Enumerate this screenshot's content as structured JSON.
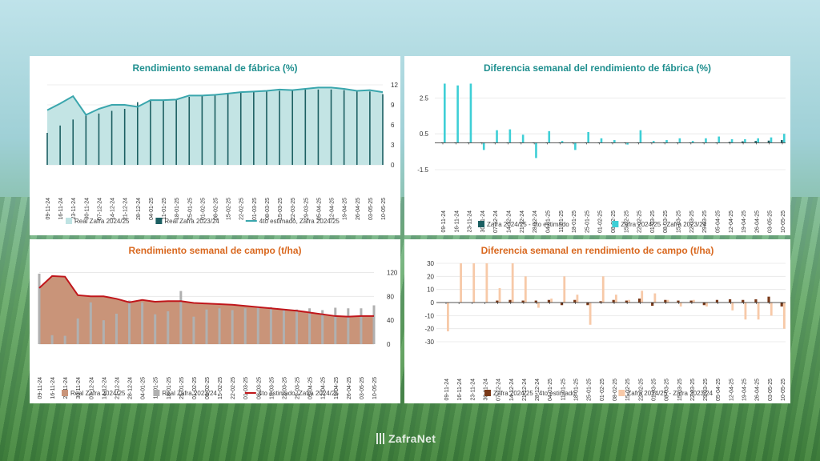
{
  "charts": [
    {
      "title": "Rendimiento semanal de fábrica (%)",
      "title_color": "#1f8f8f",
      "y_ticks": [
        "12",
        "9",
        "6",
        "3",
        "0"
      ],
      "legend": [
        {
          "label": "Real Zafra 2024/25",
          "kind": "fill",
          "color": "#bfe3e3"
        },
        {
          "label": "Real Zafra 2023/24",
          "kind": "bar",
          "color": "#1c5f62"
        },
        {
          "label": "4to estimado, Zafra 2024/25",
          "kind": "line",
          "color": "#3aa6ad"
        }
      ]
    },
    {
      "title": "Diferencia semanal del rendimiento de fábrica (%)",
      "title_color": "#1f8f8f",
      "y_ticks": [
        "2.5",
        "0.5",
        "-1.5"
      ],
      "legend": [
        {
          "label": "Zafra 2024/25 - 4to estimado",
          "kind": "bar",
          "color": "#1c5f62"
        },
        {
          "label": "Zafra 2024/25 - Zafra 2023/24",
          "kind": "bar",
          "color": "#3ecfd6"
        }
      ]
    },
    {
      "title": "Rendimiento semanal de campo (t/ha)",
      "title_color": "#d9681f",
      "y_ticks": [
        "120",
        "80",
        "40",
        "0"
      ],
      "legend": [
        {
          "label": "Real Zafra 2024/25",
          "kind": "fill",
          "color": "#c99479"
        },
        {
          "label": "Real Zafra 2023/24",
          "kind": "bar",
          "color": "#b0b0b0"
        },
        {
          "label": "4to estimado, Zafra 2024/25",
          "kind": "line",
          "color": "#c0161b"
        }
      ]
    },
    {
      "title": "Diferencia semanal en rendimiento de campo (t/ha)",
      "title_color": "#d9681f",
      "y_ticks": [
        "30",
        "20",
        "10",
        "0",
        "-10",
        "-20",
        "-30"
      ],
      "legend": [
        {
          "label": "Zafra 2024/25 - 4to estimado",
          "kind": "bar",
          "color": "#7a3a1a"
        },
        {
          "label": "Zafra 2024/25 - Zafra 2023/24",
          "kind": "bar",
          "color": "#f7c9a8"
        }
      ]
    }
  ],
  "chart_data": [
    {
      "type": "area",
      "title": "Rendimiento semanal de fábrica (%)",
      "categories": [
        "09-11-24",
        "16-11-24",
        "23-11-24",
        "30-11-24",
        "07-12-24",
        "14-12-24",
        "21-12-24",
        "28-12-24",
        "04-01-25",
        "11-01-25",
        "18-01-25",
        "25-01-25",
        "01-02-25",
        "08-02-25",
        "15-02-25",
        "22-02-25",
        "01-03-25",
        "08-03-25",
        "15-03-25",
        "22-03-25",
        "29-03-25",
        "05-04-25",
        "12-04-25",
        "19-04-25",
        "26-04-25",
        "03-05-25",
        "10-05-25"
      ],
      "ylim": [
        0,
        12
      ],
      "series": [
        {
          "name": "Real Zafra 2024/25",
          "kind": "area",
          "values": [
            8.2,
            9.2,
            10.3,
            7.5,
            8.4,
            9.0,
            9.0,
            8.7,
            9.7,
            9.7,
            9.8,
            10.4,
            10.4,
            10.5,
            10.7,
            10.9,
            11.0,
            11.1,
            11.3,
            11.2,
            11.4,
            11.6,
            11.6,
            11.4,
            11.1,
            11.2,
            11.0
          ]
        },
        {
          "name": "Real Zafra 2023/24",
          "kind": "bar",
          "values": [
            4.8,
            5.9,
            6.8,
            7.4,
            7.7,
            8.1,
            8.4,
            9.4,
            9.6,
            9.6,
            9.9,
            10.2,
            10.4,
            10.6,
            10.8,
            10.9,
            11.0,
            11.0,
            11.1,
            11.2,
            11.3,
            11.3,
            11.3,
            11.2,
            11.1,
            11.0,
            10.6
          ]
        },
        {
          "name": "4to estimado, Zafra 2024/25",
          "kind": "line",
          "values": [
            8.2,
            9.2,
            10.3,
            7.5,
            8.4,
            9.0,
            9.0,
            8.7,
            9.7,
            9.7,
            9.8,
            10.4,
            10.4,
            10.5,
            10.7,
            10.9,
            11.0,
            11.1,
            11.3,
            11.2,
            11.4,
            11.6,
            11.6,
            11.4,
            11.1,
            11.2,
            10.9
          ]
        }
      ]
    },
    {
      "type": "bar",
      "title": "Diferencia semanal del rendimiento de fábrica (%)",
      "categories": [
        "09-11-24",
        "16-11-24",
        "23-11-24",
        "30-11-24",
        "07-12-24",
        "14-12-24",
        "21-12-24",
        "28-12-24",
        "04-01-25",
        "11-01-25",
        "18-01-25",
        "25-01-25",
        "01-02-25",
        "08-02-25",
        "15-02-25",
        "22-02-25",
        "01-03-25",
        "08-03-25",
        "15-03-25",
        "22-03-25",
        "29-03-25",
        "05-04-25",
        "12-04-25",
        "19-04-25",
        "26-04-25",
        "03-05-25",
        "10-05-25"
      ],
      "ylim": [
        -1.5,
        3.5
      ],
      "series": [
        {
          "name": "Zafra 2024/25 - 4to estimado",
          "values": [
            0,
            0,
            0,
            0,
            0,
            0,
            0,
            0,
            0,
            0,
            0,
            0,
            0,
            0,
            0,
            0,
            0,
            0,
            0,
            0,
            0,
            0,
            0.05,
            0.08,
            0.1,
            0.12,
            0.15
          ]
        },
        {
          "name": "Zafra 2024/25 - Zafra 2023/24",
          "values": [
            3.3,
            3.2,
            3.3,
            -0.4,
            0.7,
            0.75,
            0.45,
            -0.85,
            0.65,
            0.1,
            -0.4,
            0.6,
            0.25,
            0.15,
            -0.1,
            0.7,
            0.1,
            0.15,
            0.25,
            0.1,
            0.25,
            0.35,
            0.2,
            0.2,
            0.25,
            0.3,
            0.5
          ]
        }
      ]
    },
    {
      "type": "area",
      "title": "Rendimiento semanal de campo (t/ha)",
      "categories": [
        "09-11-24",
        "16-11-24",
        "23-11-24",
        "30-11-24",
        "07-12-24",
        "14-12-24",
        "21-12-24",
        "28-12-24",
        "04-01-25",
        "11-01-25",
        "18-01-25",
        "25-01-25",
        "01-02-25",
        "08-02-25",
        "15-02-25",
        "22-02-25",
        "01-03-25",
        "08-03-25",
        "15-03-25",
        "22-03-25",
        "29-03-25",
        "05-04-25",
        "12-04-25",
        "19-04-25",
        "26-04-25",
        "03-05-25",
        "10-05-25"
      ],
      "ylim": [
        0,
        130
      ],
      "series": [
        {
          "name": "Real Zafra 2024/25",
          "kind": "area",
          "values": [
            94,
            114,
            113,
            82,
            80,
            80,
            76,
            70,
            74,
            71,
            72,
            72,
            69,
            68,
            67,
            66,
            64,
            62,
            60,
            58,
            56,
            53,
            50,
            47,
            46,
            47,
            47
          ]
        },
        {
          "name": "Real Zafra 2023/24",
          "kind": "bar",
          "values": [
            118,
            15,
            14,
            43,
            70,
            40,
            51,
            73,
            70,
            50,
            55,
            89,
            46,
            58,
            60,
            57,
            60,
            62,
            62,
            57,
            58,
            60,
            57,
            61,
            60,
            60,
            65
          ]
        },
        {
          "name": "4to estimado, Zafra 2024/25",
          "kind": "line",
          "values": [
            94,
            114,
            113,
            82,
            80,
            80,
            76,
            70,
            74,
            71,
            72,
            72,
            69,
            68,
            67,
            66,
            64,
            62,
            60,
            58,
            56,
            53,
            50,
            47,
            46,
            47,
            47
          ]
        }
      ]
    },
    {
      "type": "bar",
      "title": "Diferencia semanal en rendimiento de campo (t/ha)",
      "categories": [
        "09-11-24",
        "16-11-24",
        "23-11-24",
        "30-11-24",
        "07-12-24",
        "14-12-24",
        "21-12-24",
        "28-12-24",
        "04-01-25",
        "11-01-25",
        "18-01-25",
        "25-01-25",
        "01-02-25",
        "08-02-25",
        "15-02-25",
        "22-02-25",
        "01-03-25",
        "08-03-25",
        "15-03-25",
        "22-03-25",
        "29-03-25",
        "05-04-25",
        "12-04-25",
        "19-04-25",
        "26-04-25",
        "03-05-25",
        "10-05-25"
      ],
      "ylim": [
        -30,
        30
      ],
      "series": [
        {
          "name": "Zafra 2024/25 - 4to estimado",
          "values": [
            0,
            0,
            0,
            0,
            1.5,
            2,
            1.5,
            1.5,
            2,
            -2,
            2,
            -2,
            1,
            2,
            1.5,
            3,
            -2.5,
            2,
            1.5,
            1.5,
            -2,
            2,
            2.5,
            2,
            2.5,
            4.5,
            -3
          ]
        },
        {
          "name": "Zafra 2024/25 - Zafra 2023/24",
          "values": [
            -22,
            30,
            30,
            30,
            11,
            30,
            20,
            -4,
            3,
            20,
            6,
            -17,
            20,
            6,
            2,
            9,
            7,
            2,
            -3,
            2,
            -3,
            0,
            -6,
            -13,
            -13,
            -10,
            -20
          ]
        }
      ]
    }
  ]
}
